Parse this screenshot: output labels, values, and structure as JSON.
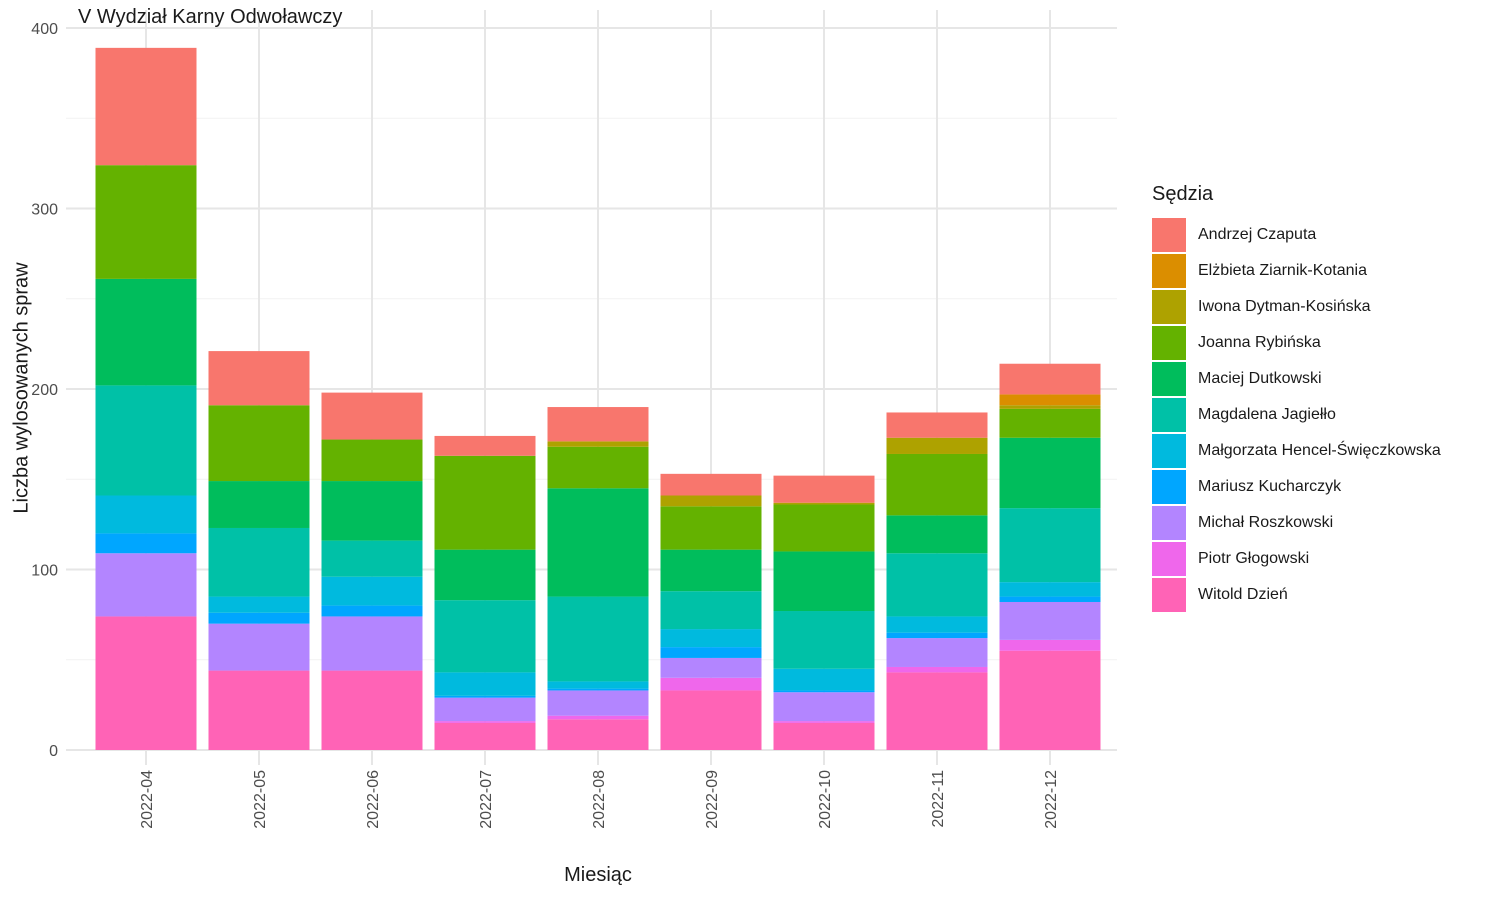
{
  "chart_data": {
    "type": "bar",
    "stacked": true,
    "title": "V Wydział Karny Odwoławczy",
    "xlabel": "Miesiąc",
    "ylabel": "Liczba wylosowanych spraw",
    "ylim": [
      0,
      400
    ],
    "yticks": [
      0,
      100,
      200,
      300,
      400
    ],
    "grid": true,
    "legend_title": "Sędzia",
    "legend_position": "right",
    "categories": [
      "2022-04",
      "2022-05",
      "2022-06",
      "2022-07",
      "2022-08",
      "2022-09",
      "2022-10",
      "2022-11",
      "2022-12"
    ],
    "series": [
      {
        "name": "Andrzej Czaputa",
        "color": "#F8766D",
        "values": [
          65,
          30,
          26,
          11,
          19,
          12,
          15,
          14,
          17
        ]
      },
      {
        "name": "Elżbieta Ziarnik-Kotania",
        "color": "#DB8E00",
        "values": [
          0,
          0,
          0,
          0,
          0,
          0,
          0,
          0,
          6
        ]
      },
      {
        "name": "Iwona Dytman-Kosińska",
        "color": "#AEA200",
        "values": [
          0,
          0,
          0,
          0,
          3,
          6,
          1,
          9,
          2
        ]
      },
      {
        "name": "Joanna Rybińska",
        "color": "#64B200",
        "values": [
          63,
          42,
          23,
          52,
          23,
          24,
          26,
          34,
          16
        ]
      },
      {
        "name": "Maciej Dutkowski",
        "color": "#00BD5C",
        "values": [
          59,
          26,
          33,
          28,
          60,
          23,
          33,
          21,
          39
        ]
      },
      {
        "name": "Magdalena Jagiełło",
        "color": "#00C1A7",
        "values": [
          61,
          38,
          20,
          40,
          47,
          21,
          32,
          35,
          41
        ]
      },
      {
        "name": "Małgorzata Hencel-Święczkowska",
        "color": "#00BADE",
        "values": [
          21,
          9,
          16,
          13,
          4,
          10,
          12,
          9,
          8
        ]
      },
      {
        "name": "Mariusz Kucharczyk",
        "color": "#00A6FF",
        "values": [
          11,
          6,
          6,
          1,
          1,
          6,
          1,
          3,
          3
        ]
      },
      {
        "name": "Michał Roszkowski",
        "color": "#B385FF",
        "values": [
          35,
          26,
          30,
          13,
          14,
          11,
          16,
          16,
          21
        ]
      },
      {
        "name": "Piotr Głogowski",
        "color": "#EF67EB",
        "values": [
          0,
          0,
          0,
          1,
          2,
          7,
          1,
          3,
          6
        ]
      },
      {
        "name": "Witold Dzień",
        "color": "#FF63B6",
        "values": [
          74,
          44,
          44,
          15,
          17,
          33,
          15,
          43,
          55
        ]
      }
    ]
  }
}
